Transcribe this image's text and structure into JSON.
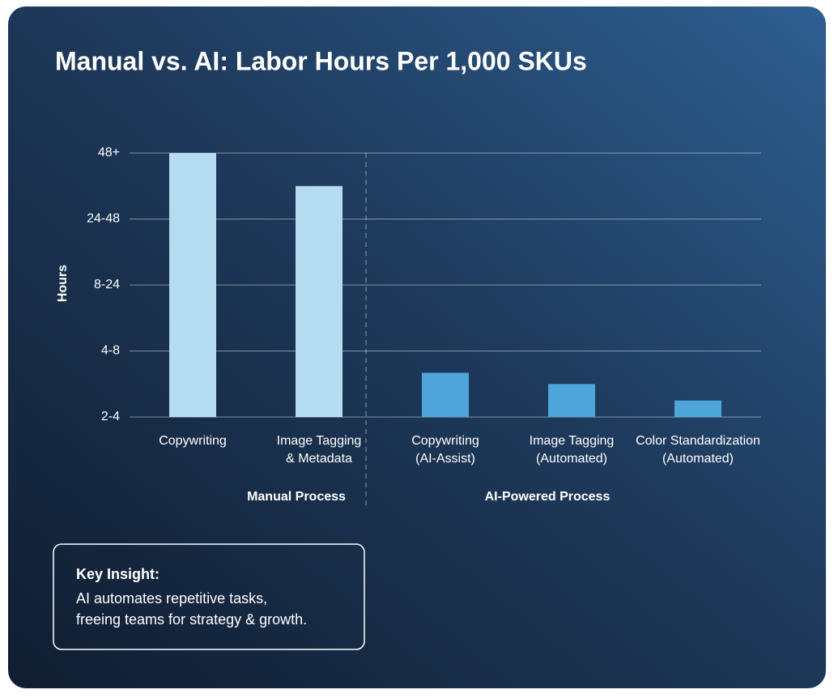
{
  "chart_data": {
    "type": "bar",
    "title": "Manual vs. AI: Labor Hours Per 1,000 SKUs",
    "y_label": "Hours",
    "categories": [
      "Copywriting",
      "Image Tagging\n& Metadata",
      "Copywriting\n(AI-Assist)",
      "Image Tagging\n(Automated)",
      "Color Standardization\n(Automated)"
    ],
    "series": [
      {
        "name": "Manual Process",
        "color": "#b5dcf0",
        "values": [
          4,
          3.5,
          null,
          null,
          null
        ]
      },
      {
        "name": "AI-Powered Process",
        "color": "#4ea5da",
        "values": [
          null,
          null,
          0.67,
          0.5,
          0.25
        ]
      }
    ],
    "ylim": [
      0,
      4
    ],
    "yticks": [
      {
        "value": 0,
        "label": "2-4"
      },
      {
        "value": 1,
        "label": "4-8"
      },
      {
        "value": 2,
        "label": "8-24"
      },
      {
        "value": 3,
        "label": "24-48"
      },
      {
        "value": 4,
        "label": "48+"
      }
    ],
    "grid": true
  },
  "insight": {
    "heading": "Key Insight:",
    "lines": [
      "AI automates repetitive tasks,",
      "freeing teams for strategy & growth."
    ]
  }
}
